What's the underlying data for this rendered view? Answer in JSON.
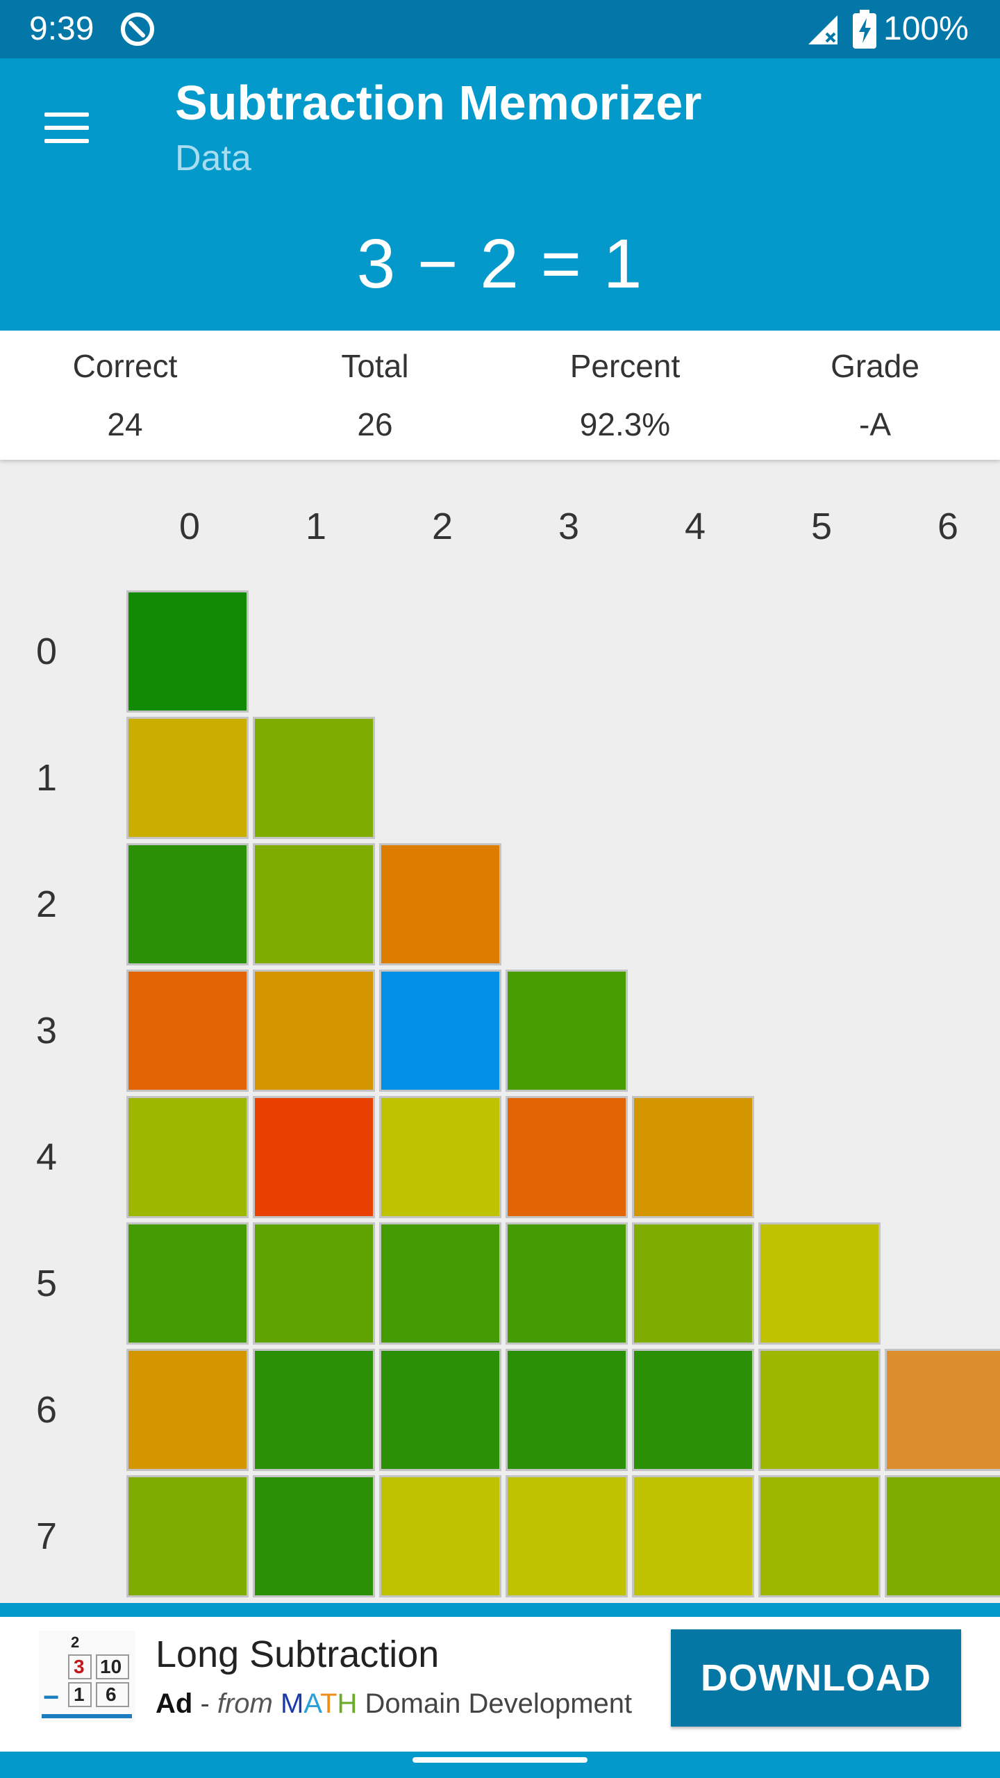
{
  "status_bar": {
    "time": "9:39",
    "battery": "100%"
  },
  "app_bar": {
    "title": "Subtraction Memorizer",
    "subtitle": "Data"
  },
  "equation": "3 − 2 = 1",
  "stats": [
    {
      "label": "Correct",
      "value": "24"
    },
    {
      "label": "Total",
      "value": "26"
    },
    {
      "label": "Percent",
      "value": "92.3%"
    },
    {
      "label": "Grade",
      "value": "-A"
    }
  ],
  "grid": {
    "columns": [
      "0",
      "1",
      "2",
      "3",
      "4",
      "5",
      "6"
    ],
    "rows": [
      {
        "label": "0",
        "cells": [
          "#138a04"
        ]
      },
      {
        "label": "1",
        "cells": [
          "#c9ae00",
          "#7fac00"
        ]
      },
      {
        "label": "2",
        "cells": [
          "#2b9006",
          "#7fac00",
          "#dc7d00"
        ]
      },
      {
        "label": "3",
        "cells": [
          "#e36405",
          "#d39500",
          "#0391e7",
          "#479d02"
        ]
      },
      {
        "label": "4",
        "cells": [
          "#9db700",
          "#ea4103",
          "#bfc200",
          "#e36405",
          "#d39500"
        ]
      },
      {
        "label": "5",
        "cells": [
          "#459b02",
          "#5ea302",
          "#459b02",
          "#459b02",
          "#7fac00",
          "#bfc200"
        ]
      },
      {
        "label": "6",
        "cells": [
          "#d39500",
          "#2b9006",
          "#2b9006",
          "#2b9006",
          "#2b9006",
          "#9db700",
          "#dc8e2e"
        ]
      },
      {
        "label": "7",
        "cells": [
          "#7fac00",
          "#2b9006",
          "#bfc200",
          "#bfc200",
          "#bfc200",
          "#9db700",
          "#7fac00"
        ]
      }
    ]
  },
  "ad": {
    "title": "Long Subtraction",
    "ad_label": "Ad",
    "separator": " - ",
    "from_label": "from",
    "brand_letters": [
      {
        "char": "M",
        "color": "#1a3aa8"
      },
      {
        "char": "A",
        "color": "#2aa0d8"
      },
      {
        "char": "T",
        "color": "#f08c1a"
      },
      {
        "char": "H",
        "color": "#6aab2a"
      }
    ],
    "brand_rest_1": "Domain",
    "brand_rest_2": "Development",
    "button_label": "DOWNLOAD",
    "logo_digits": {
      "top": "2",
      "a": "3",
      "b": "10",
      "c": "1",
      "d": "6",
      "minus": "−"
    }
  }
}
